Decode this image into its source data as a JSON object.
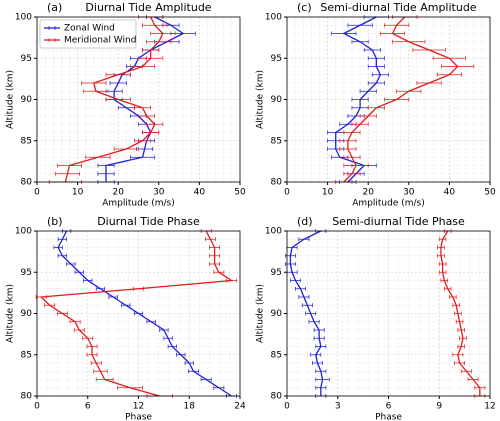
{
  "chart_data": [
    {
      "type": "line",
      "label": "(a)",
      "title": "Diurnal Tide Amplitude",
      "xlabel": "Amplitude (m/s)",
      "ylabel": "Altitude (km)",
      "xlim": [
        0,
        50
      ],
      "xticks": [
        0,
        10,
        20,
        30,
        40,
        50
      ],
      "ylim": [
        80,
        100
      ],
      "yticks": [
        80,
        85,
        90,
        95,
        100
      ],
      "grid": true,
      "legend": "upper left",
      "y": [
        80,
        81,
        82,
        83,
        84,
        85,
        86,
        87,
        88,
        89,
        90,
        91,
        92,
        93,
        94,
        95,
        96,
        97,
        98,
        99,
        100
      ],
      "series": [
        {
          "name": "Zonal Wind",
          "color": "#1f1fd6",
          "values": [
            17,
            17,
            17,
            26,
            26.5,
            27,
            28,
            27,
            25,
            22,
            19,
            19,
            20,
            21,
            24,
            25,
            28,
            32,
            36,
            33,
            29
          ],
          "errors": [
            2,
            2,
            2,
            3,
            2,
            2,
            2,
            2,
            2,
            2,
            2,
            2,
            2,
            2,
            2,
            2,
            2,
            3,
            3,
            2,
            2
          ]
        },
        {
          "name": "Meridional Wind",
          "color": "#e31a1c",
          "values": [
            7,
            7.5,
            8,
            15,
            22,
            26,
            28,
            29,
            27,
            26,
            20,
            14.5,
            14,
            20,
            26,
            28,
            28,
            30,
            31,
            29,
            28
          ],
          "errors": [
            4,
            3,
            3,
            3,
            3,
            2,
            2,
            2,
            2,
            2,
            3,
            3,
            3,
            3,
            3,
            3,
            2,
            3,
            3,
            3,
            3
          ]
        }
      ]
    },
    {
      "type": "line",
      "label": "(c)",
      "title": "Semi-diurnal Tide Amplitude",
      "xlabel": "Amplitude (m/s)",
      "ylabel": "Altitude (km)",
      "xlim": [
        0,
        50
      ],
      "xticks": [
        0,
        10,
        20,
        30,
        40,
        50
      ],
      "ylim": [
        80,
        100
      ],
      "yticks": [
        80,
        85,
        90,
        95,
        100
      ],
      "grid": true,
      "y": [
        80,
        81,
        82,
        83,
        84,
        85,
        86,
        87,
        88,
        89,
        90,
        91,
        92,
        93,
        94,
        95,
        96,
        97,
        98,
        99,
        100
      ],
      "series": [
        {
          "color": "#1f1fd6",
          "values": [
            15,
            17,
            19,
            13,
            12,
            12,
            12,
            15,
            17,
            18,
            18,
            20,
            22,
            23,
            22,
            22,
            21,
            18,
            14,
            18,
            22
          ],
          "errors": [
            2,
            2,
            3,
            2,
            2,
            2,
            2,
            2,
            2,
            2,
            2,
            2,
            2,
            2,
            2,
            2,
            2,
            2,
            3,
            3,
            3
          ]
        },
        {
          "color": "#e31a1c",
          "values": [
            14,
            16,
            17,
            16,
            15,
            15,
            16,
            18,
            20,
            22,
            27,
            30,
            35,
            40,
            42,
            40,
            35,
            30,
            26,
            27,
            29
          ],
          "errors": [
            2,
            2,
            3,
            2,
            2,
            2,
            2,
            2,
            2,
            2,
            3,
            3,
            3,
            3,
            4,
            4,
            4,
            4,
            3,
            3,
            3
          ]
        }
      ]
    },
    {
      "type": "line",
      "label": "(b)",
      "title": "Diurnal Tide Phase",
      "xlabel": "Phase",
      "ylabel": "Altitude (km)",
      "xlim": [
        0,
        24
      ],
      "xticks": [
        0,
        6,
        12,
        18,
        24
      ],
      "ylim": [
        80,
        100
      ],
      "yticks": [
        80,
        85,
        90,
        95,
        100
      ],
      "grid": true,
      "y": [
        80,
        81,
        82,
        83,
        84,
        85,
        86,
        87,
        88,
        89,
        90,
        91,
        92,
        93,
        94,
        95,
        96,
        97,
        98,
        99,
        100
      ],
      "series": [
        {
          "color": "#1f1fd6",
          "values": [
            23,
            21.5,
            20,
            18.5,
            18,
            17,
            16,
            15.5,
            15,
            13.5,
            12,
            10.5,
            9,
            7.5,
            6,
            5,
            4,
            3,
            2.5,
            3,
            3.5
          ],
          "errors": [
            0.6,
            0.6,
            0.6,
            0.6,
            0.5,
            0.5,
            0.5,
            0.5,
            0.5,
            0.5,
            0.5,
            0.5,
            0.5,
            0.5,
            0.5,
            0.5,
            0.5,
            0.5,
            0.5,
            0.5,
            0.5
          ]
        },
        {
          "color": "#e31a1c",
          "values": [
            14.5,
            11,
            8,
            7.5,
            7,
            6.5,
            6.5,
            6,
            5,
            4.5,
            3,
            1.5,
            0.5,
            12,
            23,
            21.5,
            21,
            21,
            21,
            20.5,
            20
          ],
          "errors": [
            1.5,
            1.5,
            1,
            0.8,
            0.6,
            0.6,
            0.6,
            0.6,
            0.6,
            0.6,
            0.6,
            0.6,
            0.6,
            0.6,
            0.6,
            0.6,
            0.6,
            0.6,
            0.6,
            0.6,
            0.6
          ]
        }
      ]
    },
    {
      "type": "line",
      "label": "(d)",
      "title": "Semi-diurnal Tide Phase",
      "xlabel": "Phase",
      "ylabel": "Altitude (km)",
      "xlim": [
        0,
        12
      ],
      "xticks": [
        0,
        3,
        6,
        9,
        12
      ],
      "ylim": [
        80,
        100
      ],
      "yticks": [
        80,
        85,
        90,
        95,
        100
      ],
      "grid": true,
      "y": [
        80,
        81,
        82,
        83,
        84,
        85,
        86,
        87,
        88,
        89,
        90,
        91,
        92,
        93,
        94,
        95,
        96,
        97,
        98,
        99,
        100
      ],
      "series": [
        {
          "color": "#1f1fd6",
          "values": [
            2,
            2,
            2.1,
            2,
            1.8,
            1.7,
            2,
            1.9,
            1.9,
            1.6,
            1.4,
            1.2,
            1,
            0.8,
            0.5,
            0.3,
            0.2,
            0.2,
            0.3,
            1,
            2
          ],
          "errors": [
            0.3,
            0.3,
            0.4,
            0.3,
            0.3,
            0.3,
            0.3,
            0.3,
            0.3,
            0.3,
            0.3,
            0.3,
            0.3,
            0.3,
            0.3,
            0.3,
            0.3,
            0.3,
            0.3,
            0.3,
            0.3
          ]
        },
        {
          "color": "#e31a1c",
          "values": [
            11.4,
            11.4,
            11,
            10.6,
            10.2,
            10.1,
            10.3,
            10.4,
            10.3,
            10.2,
            10.1,
            10,
            9.8,
            9.5,
            9.3,
            9.2,
            9.2,
            9.1,
            9.1,
            9.2,
            9.5
          ],
          "errors": [
            0.3,
            0.3,
            0.3,
            0.3,
            0.3,
            0.3,
            0.2,
            0.2,
            0.2,
            0.2,
            0.2,
            0.2,
            0.2,
            0.2,
            0.2,
            0.2,
            0.2,
            0.2,
            0.2,
            0.2,
            0.2
          ]
        }
      ]
    }
  ]
}
